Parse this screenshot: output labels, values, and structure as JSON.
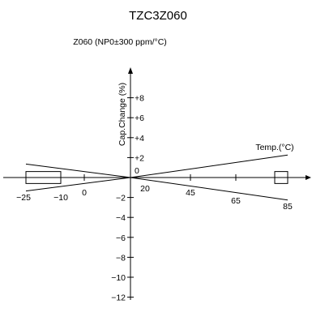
{
  "chart_data": {
    "type": "line",
    "title": "TZC3Z060",
    "subtitle": "Z060 (NP0±300 ppm/°C)",
    "xlabel": "Temp.(°C)",
    "ylabel": "Cap.Change (%)",
    "x_ticks": [
      {
        "value": -25,
        "label": "−25"
      },
      {
        "value": -10,
        "label": "−10"
      },
      {
        "value": 0,
        "label": "0"
      },
      {
        "value": 20,
        "label": "20"
      },
      {
        "value": 45,
        "label": "45"
      },
      {
        "value": 65,
        "label": "65"
      },
      {
        "value": 85,
        "label": "85"
      }
    ],
    "y_ticks": [
      {
        "value": 8,
        "label": "+8"
      },
      {
        "value": 6,
        "label": "+6"
      },
      {
        "value": 4,
        "label": "+4"
      },
      {
        "value": 2,
        "label": "+2"
      },
      {
        "value": 0,
        "label": "0"
      },
      {
        "value": -2,
        "label": "−2"
      },
      {
        "value": -4,
        "label": "−4"
      },
      {
        "value": -6,
        "label": "−6"
      },
      {
        "value": -8,
        "label": "−8"
      },
      {
        "value": -10,
        "label": "−10"
      },
      {
        "value": -12,
        "label": "−12"
      }
    ],
    "xlim": [
      -25,
      85
    ],
    "ylim": [
      -12,
      8
    ],
    "series": [
      {
        "values": [
          [
            -25,
            1.35
          ],
          [
            20,
            0
          ],
          [
            85,
            2.25
          ]
        ]
      },
      {
        "values": [
          [
            -25,
            -1.35
          ],
          [
            20,
            0
          ],
          [
            85,
            -2.25
          ]
        ]
      }
    ],
    "boxes": [
      {
        "x": [
          -25,
          -10
        ],
        "y": [
          -0.6,
          0.6
        ]
      },
      {
        "x": [
          80,
          85
        ],
        "y": [
          -0.6,
          0.6
        ]
      }
    ],
    "grid": false
  }
}
